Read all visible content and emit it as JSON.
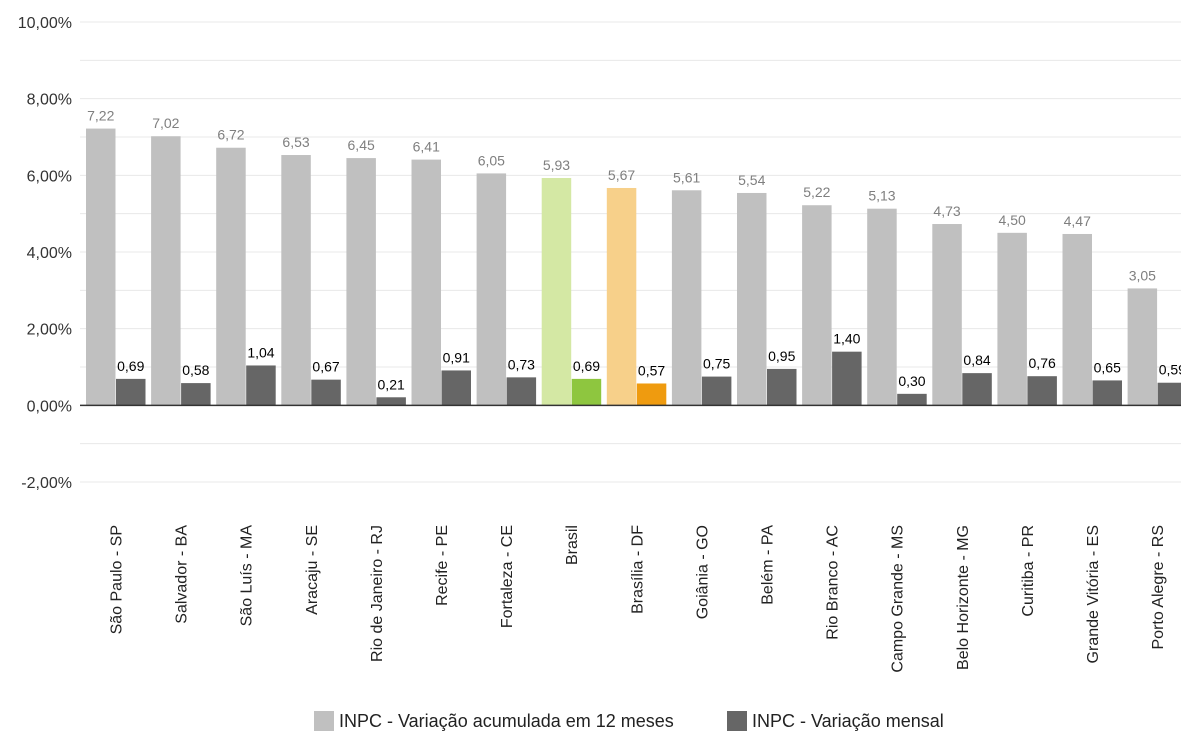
{
  "chart_data": {
    "type": "bar",
    "ylim": [
      -2,
      10
    ],
    "yticks": [
      "10,00%",
      "8,00%",
      "6,00%",
      "4,00%",
      "2,00%",
      "0,00%",
      "-2,00%"
    ],
    "ytick_values": [
      10,
      8,
      6,
      4,
      2,
      0,
      -2
    ],
    "grid": true,
    "legend_position": "bottom",
    "categories": [
      "São Paulo - SP",
      "Salvador - BA",
      "São Luís - MA",
      "Aracaju - SE",
      "Rio de Janeiro - RJ",
      "Recife - PE",
      "Fortaleza - CE",
      "Brasil",
      "Brasília - DF",
      "Goiânia - GO",
      "Belém - PA",
      "Rio Branco - AC",
      "Campo Grande - MS",
      "Belo Horizonte - MG",
      "Curitiba - PR",
      "Grande Vitória - ES",
      "Porto Alegre - RS"
    ],
    "series": [
      {
        "name": "INPC - Variação acumulada em 12 meses",
        "color": "#c0c0c0",
        "values": [
          7.22,
          7.02,
          6.72,
          6.53,
          6.45,
          6.41,
          6.05,
          5.93,
          5.67,
          5.61,
          5.54,
          5.22,
          5.13,
          4.73,
          4.5,
          4.47,
          3.05
        ],
        "labels": [
          "7,22",
          "7,02",
          "6,72",
          "6,53",
          "6,45",
          "6,41",
          "6,05",
          "5,93",
          "5,67",
          "5,61",
          "5,54",
          "5,22",
          "5,13",
          "4,73",
          "4,50",
          "4,47",
          "3,05"
        ]
      },
      {
        "name": "INPC - Variação mensal",
        "color": "#666666",
        "values": [
          0.69,
          0.58,
          1.04,
          0.67,
          0.21,
          0.91,
          0.73,
          0.69,
          0.57,
          0.75,
          0.95,
          1.4,
          0.3,
          0.84,
          0.76,
          0.65,
          0.59
        ],
        "labels": [
          "0,69",
          "0,58",
          "1,04",
          "0,67",
          "0,21",
          "0,91",
          "0,73",
          "0,69",
          "0,57",
          "0,75",
          "0,95",
          "1,40",
          "0,30",
          "0,84",
          "0,76",
          "0,65",
          "0,59"
        ]
      }
    ],
    "highlights": [
      {
        "category": "Brasil",
        "colors": [
          "#d4e8a4",
          "#8ec63f"
        ]
      },
      {
        "category": "Brasília - DF",
        "colors": [
          "#f7d08a",
          "#ef9b0f"
        ]
      }
    ]
  }
}
